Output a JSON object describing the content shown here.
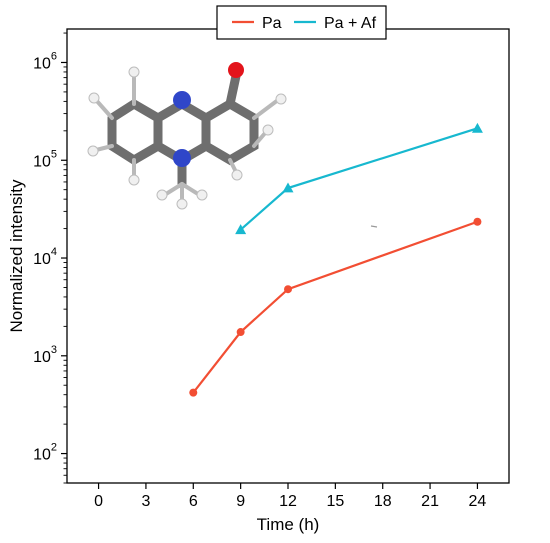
{
  "chart_data": {
    "type": "line",
    "xlabel": "Time (h)",
    "ylabel": "Normalized intensity",
    "y_scale": "log",
    "xlim": [
      -2,
      26
    ],
    "ylim": [
      50,
      2200000
    ],
    "x_ticks": [
      0,
      3,
      6,
      9,
      12,
      15,
      18,
      21,
      24
    ],
    "y_ticks": [
      {
        "value": 100,
        "base": "10",
        "exp": "2"
      },
      {
        "value": 1000,
        "base": "10",
        "exp": "3"
      },
      {
        "value": 10000,
        "base": "10",
        "exp": "4"
      },
      {
        "value": 100000,
        "base": "10",
        "exp": "5"
      },
      {
        "value": 1000000,
        "base": "10",
        "exp": "6"
      }
    ],
    "grid": false,
    "legend_position": "top-center",
    "series": [
      {
        "name": "Pa",
        "color": "#f24e33",
        "marker": "circle",
        "x": [
          6,
          9,
          12,
          24
        ],
        "y": [
          420,
          1750,
          4800,
          23500
        ]
      },
      {
        "name": "Pa + Af",
        "color": "#17b8cf",
        "marker": "triangle",
        "x": [
          9,
          12,
          24
        ],
        "y": [
          19500,
          52000,
          212000
        ]
      }
    ]
  },
  "inset_icon": "phenazine-molecule-icon"
}
